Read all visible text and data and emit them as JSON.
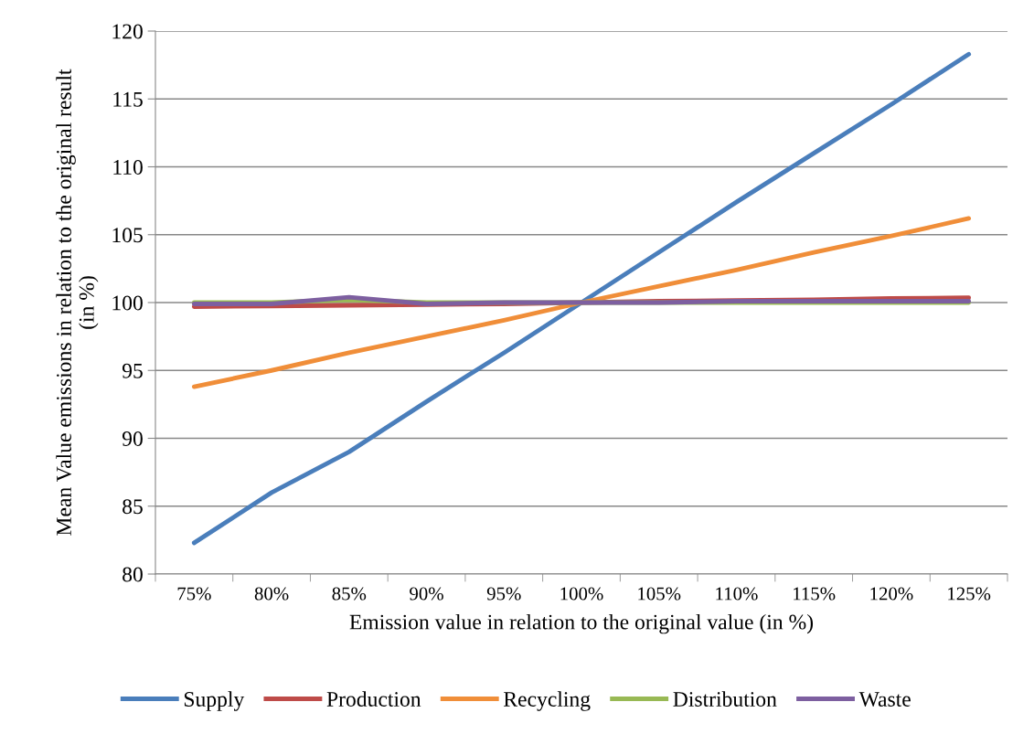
{
  "chart_data": {
    "type": "line",
    "xlabel": "Emission value in relation to the original value (in %)",
    "ylabel": "Mean Value emissions in relation to the original result\n(in %)",
    "categories": [
      "75%",
      "80%",
      "85%",
      "90%",
      "95%",
      "100%",
      "105%",
      "110%",
      "115%",
      "120%",
      "125%"
    ],
    "series": [
      {
        "name": "Supply",
        "color": "#4a7ebb",
        "values": [
          82.3,
          86.0,
          89.0,
          92.7,
          96.3,
          100,
          103.7,
          107.4,
          111.0,
          114.6,
          118.3
        ]
      },
      {
        "name": "Production",
        "color": "#be4b48",
        "values": [
          99.7,
          99.75,
          99.8,
          99.85,
          99.9,
          100,
          100.1,
          100.15,
          100.2,
          100.3,
          100.35
        ]
      },
      {
        "name": "Recycling",
        "color": "#f08e39",
        "values": [
          93.8,
          95.0,
          96.3,
          97.5,
          98.7,
          100,
          101.2,
          102.4,
          103.7,
          104.9,
          106.2
        ]
      },
      {
        "name": "Distribution",
        "color": "#98b954",
        "values": [
          100,
          100,
          100.2,
          100,
          100,
          100,
          100,
          100,
          100,
          100,
          100
        ]
      },
      {
        "name": "Waste",
        "color": "#7d5fa0",
        "values": [
          99.9,
          99.9,
          100.4,
          99.9,
          100,
          100,
          100,
          100.1,
          100.1,
          100.1,
          100.1
        ]
      }
    ],
    "ylim": [
      80,
      120
    ],
    "yticks": [
      80,
      85,
      90,
      95,
      100,
      105,
      110,
      115,
      120
    ],
    "grid": "y",
    "legend": "bottom",
    "marker": "none",
    "line_style": "solid"
  }
}
